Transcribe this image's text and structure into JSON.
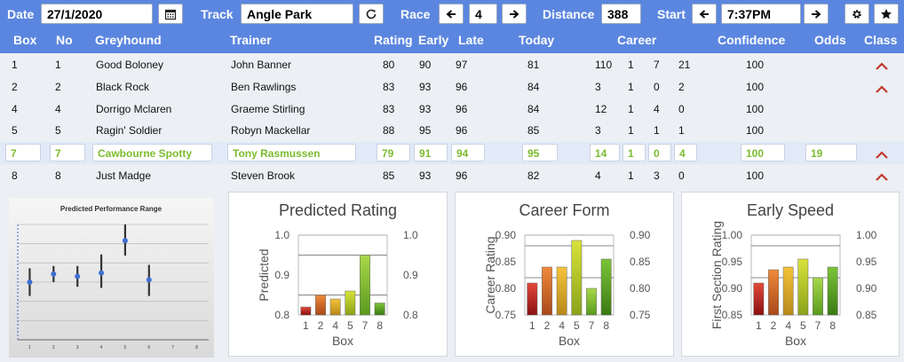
{
  "toolbar": {
    "date_label": "Date",
    "date_value": "27/1/2020",
    "track_label": "Track",
    "track_value": "Angle Park",
    "race_label": "Race",
    "race_value": "4",
    "distance_label": "Distance",
    "distance_value": "388",
    "start_label": "Start",
    "start_value": "7:37PM",
    "icons": [
      "calendar-icon",
      "refresh-icon",
      "arrow-left-icon",
      "arrow-right-icon",
      "gear-icon",
      "star-icon"
    ]
  },
  "columns": {
    "box": "Box",
    "no": "No",
    "greyhound": "Greyhound",
    "trainer": "Trainer",
    "rating": "Rating",
    "early": "Early",
    "late": "Late",
    "today": "Today",
    "career": "Career",
    "confidence": "Confidence",
    "odds": "Odds",
    "class": "Class"
  },
  "rows": [
    {
      "box": "1",
      "no": "1",
      "greyhound": "Good Boloney",
      "trainer": "John Banner",
      "rating": "80",
      "early": "90",
      "late": "97",
      "today": "81",
      "c1": "110",
      "c2": "1",
      "c3": "7",
      "c4": "21",
      "confidence": "100",
      "odds": "",
      "class_up": true
    },
    {
      "box": "2",
      "no": "2",
      "greyhound": "Black Rock",
      "trainer": "Ben Rawlings",
      "rating": "83",
      "early": "93",
      "late": "96",
      "today": "84",
      "c1": "3",
      "c2": "1",
      "c3": "0",
      "c4": "2",
      "confidence": "100",
      "odds": "",
      "class_up": true
    },
    {
      "box": "4",
      "no": "4",
      "greyhound": "Dorrigo Mclaren",
      "trainer": "Graeme Stirling",
      "rating": "83",
      "early": "93",
      "late": "96",
      "today": "84",
      "c1": "12",
      "c2": "1",
      "c3": "4",
      "c4": "0",
      "confidence": "100",
      "odds": "",
      "class_up": false
    },
    {
      "box": "5",
      "no": "5",
      "greyhound": "Ragin' Soldier",
      "trainer": "Robyn Mackellar",
      "rating": "88",
      "early": "95",
      "late": "96",
      "today": "85",
      "c1": "3",
      "c2": "1",
      "c3": "1",
      "c4": "1",
      "confidence": "100",
      "odds": "",
      "class_up": false
    },
    {
      "box": "7",
      "no": "7",
      "greyhound": "Cawbourne Spotty",
      "trainer": "Tony Rasmussen",
      "rating": "79",
      "early": "91",
      "late": "94",
      "today": "95",
      "c1": "14",
      "c2": "1",
      "c3": "0",
      "c4": "4",
      "confidence": "100",
      "odds": "19",
      "class_up": true,
      "selected": true
    },
    {
      "box": "8",
      "no": "8",
      "greyhound": "Just Madge",
      "trainer": "Steven Brook",
      "rating": "85",
      "early": "93",
      "late": "96",
      "today": "82",
      "c1": "4",
      "c2": "1",
      "c3": "3",
      "c4": "0",
      "confidence": "100",
      "odds": "",
      "class_up": true
    }
  ],
  "colors": {
    "header_bg": "#5b86e0",
    "selected_text": "#7cbb2f",
    "caret": "#c0392b",
    "bar_red": "#b0161e",
    "bar_green": "#5aa81e"
  },
  "chart_data": [
    {
      "type": "scatter",
      "title": "Predicted Performance Range",
      "categories": [
        "1",
        "2",
        "3",
        "4",
        "5",
        "6",
        "7",
        "8"
      ],
      "points": [
        {
          "x": 1,
          "y": 0.5,
          "low": 0.38,
          "high": 0.62
        },
        {
          "x": 2,
          "y": 0.57,
          "low": 0.5,
          "high": 0.64
        },
        {
          "x": 3,
          "y": 0.55,
          "low": 0.46,
          "high": 0.64
        },
        {
          "x": 4,
          "y": 0.58,
          "low": 0.45,
          "high": 0.74
        },
        {
          "x": 5,
          "y": 0.86,
          "low": 0.73,
          "high": 1.0
        },
        {
          "x": 6,
          "y": 0.52,
          "low": 0.38,
          "high": 0.65
        }
      ]
    },
    {
      "type": "bar",
      "title": "Predicted Rating",
      "xlabel": "Box",
      "ylabel": "Predicted",
      "categories": [
        "1",
        "2",
        "4",
        "5",
        "7",
        "8"
      ],
      "values": [
        0.82,
        0.85,
        0.84,
        0.86,
        0.95,
        0.83
      ],
      "ylim": [
        0.8,
        1.0
      ],
      "yticks": [
        "0.8",
        "0.9",
        "1.0"
      ],
      "lines": [
        0.85,
        0.95
      ]
    },
    {
      "type": "bar",
      "title": "Career Form",
      "xlabel": "Box",
      "ylabel": "Career Rating",
      "categories": [
        "1",
        "2",
        "4",
        "5",
        "7",
        "8"
      ],
      "values": [
        0.81,
        0.84,
        0.84,
        0.89,
        0.8,
        0.855
      ],
      "ylim": [
        0.75,
        0.9
      ],
      "yticks": [
        "0.75",
        "0.80",
        "0.85",
        "0.90"
      ],
      "lines": [
        0.82,
        0.88
      ]
    },
    {
      "type": "bar",
      "title": "Early Speed",
      "xlabel": "Box",
      "ylabel": "First Section Rating",
      "categories": [
        "1",
        "2",
        "4",
        "5",
        "7",
        "8"
      ],
      "values": [
        0.91,
        0.935,
        0.94,
        0.955,
        0.92,
        0.94
      ],
      "ylim": [
        0.85,
        1.0
      ],
      "yticks": [
        "0.85",
        "0.90",
        "0.95",
        "1.00"
      ],
      "lines": [
        0.92,
        0.98
      ]
    }
  ]
}
